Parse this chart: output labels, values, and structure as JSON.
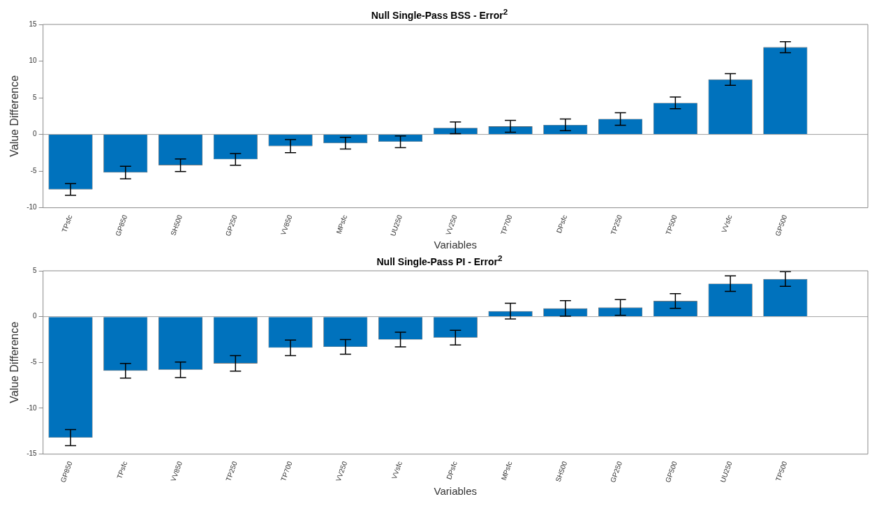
{
  "chart_data": [
    {
      "type": "bar",
      "title": "Null Single-Pass BSS - Error$^{2}$",
      "xlabel": "Variables",
      "ylabel": "Value Difference",
      "categories": [
        "TPsfc",
        "GP850",
        "SH500",
        "GP250",
        "VV850",
        "MPsfc",
        "UU250",
        "VV250",
        "TP700",
        "DPsfc",
        "TP250",
        "TP500",
        "VVsfc",
        "GP500",
        null
      ],
      "series": [
        {
          "color": "#0072bd",
          "values": [
            -7.5,
            -5.2,
            -4.2,
            -3.4,
            -1.6,
            -1.2,
            -1.0,
            0.9,
            1.1,
            1.3,
            2.1,
            4.3,
            7.5,
            11.9,
            null
          ],
          "errors": [
            0.8,
            0.85,
            0.85,
            0.8,
            0.9,
            0.8,
            0.8,
            0.8,
            0.8,
            0.8,
            0.85,
            0.8,
            0.8,
            0.75,
            null
          ]
        }
      ],
      "ylim": [
        -10,
        15
      ],
      "yticks": [
        -10,
        -5,
        0,
        5,
        10,
        15
      ],
      "grid": false,
      "legend": false,
      "ref_lines": [
        {
          "axis": "y",
          "value": 0,
          "color": "#a0a0a0"
        }
      ]
    },
    {
      "type": "bar",
      "title": "Null Single-Pass PI - Error$^{2}$",
      "xlabel": "Variables",
      "ylabel": "Value Difference",
      "categories": [
        "GP850",
        "TPsfc",
        "VV850",
        "TP250",
        "TP700",
        "VV250",
        "VVsfc",
        "DPsfc",
        "MPsfc",
        "SH500",
        "GP250",
        "GP500",
        "UU250",
        "TP500",
        null
      ],
      "series": [
        {
          "color": "#0072bd",
          "values": [
            -13.2,
            -5.9,
            -5.8,
            -5.1,
            -3.4,
            -3.3,
            -2.5,
            -2.3,
            0.6,
            0.9,
            1.0,
            1.7,
            3.6,
            4.1,
            null
          ],
          "errors": [
            0.87,
            0.8,
            0.85,
            0.85,
            0.85,
            0.8,
            0.8,
            0.8,
            0.85,
            0.85,
            0.85,
            0.8,
            0.85,
            0.8,
            null
          ]
        }
      ],
      "ylim": [
        -15,
        5
      ],
      "yticks": [
        -15,
        -10,
        -5,
        0,
        5
      ],
      "grid": false,
      "legend": false,
      "ref_lines": [
        {
          "axis": "y",
          "value": 0,
          "color": "#a0a0a0"
        }
      ]
    }
  ]
}
